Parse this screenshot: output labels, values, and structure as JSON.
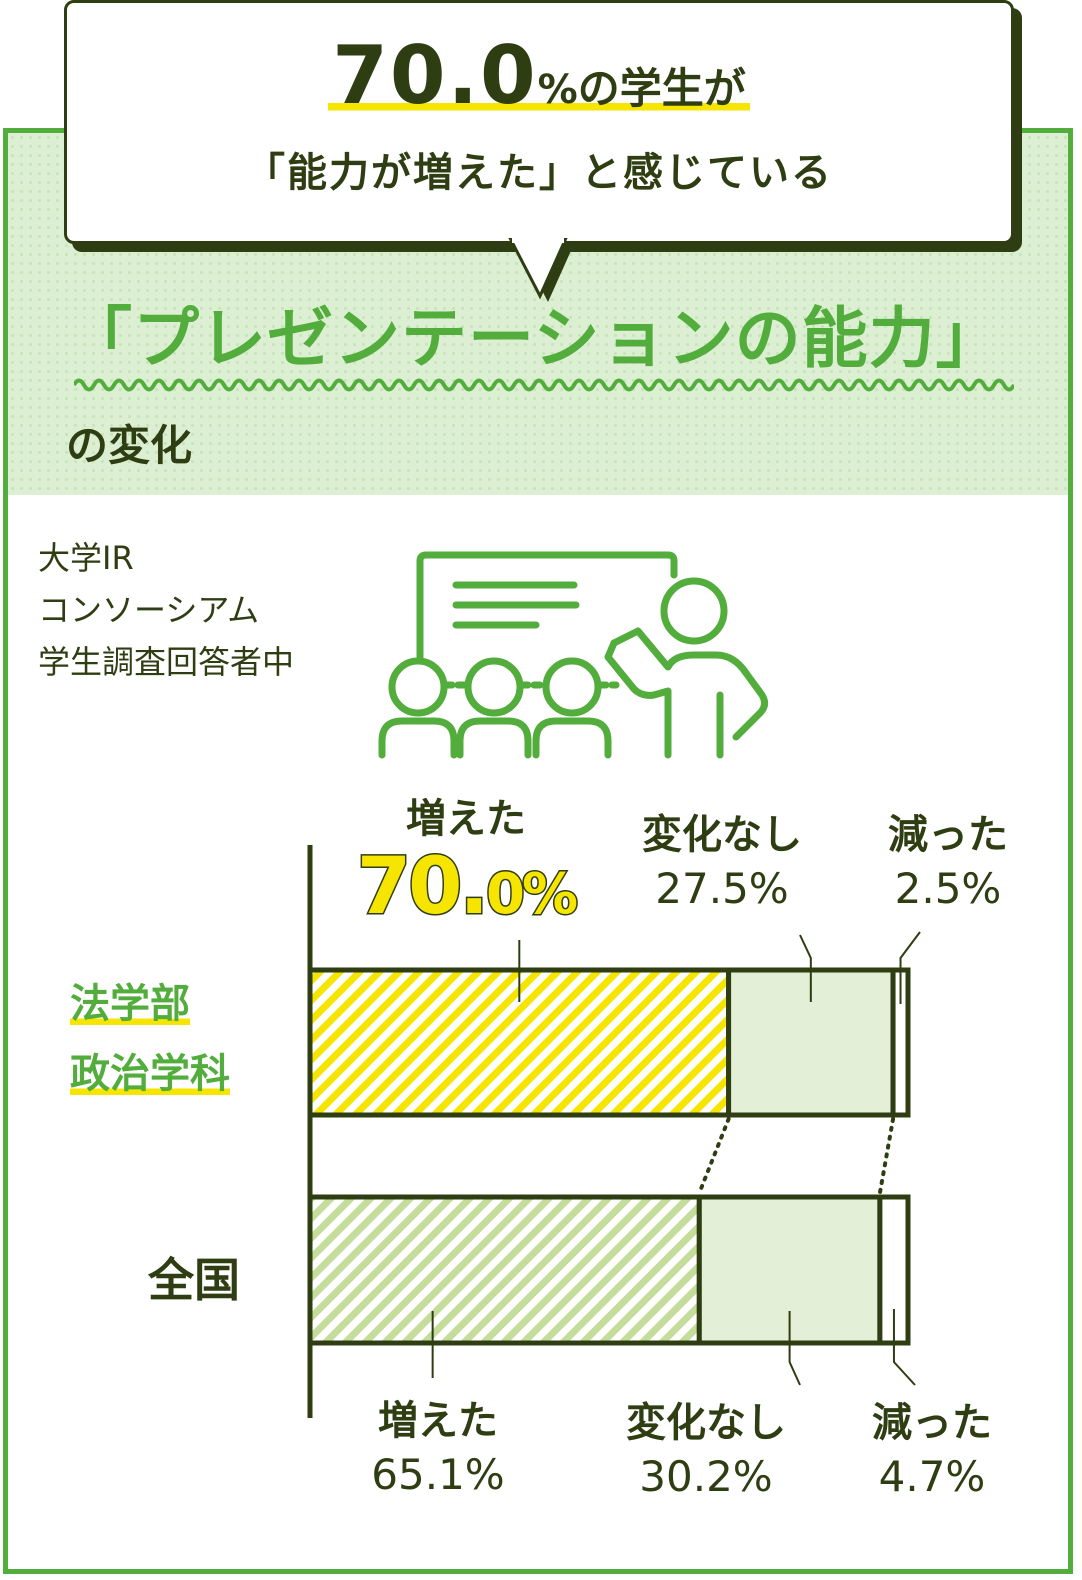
{
  "headline": {
    "value_main": "70.0",
    "value_unit": "%",
    "line1_rest": "の学生が",
    "line2": "「能力が増えた」と感じている"
  },
  "topic": {
    "title": "「プレゼンテーションの能力」",
    "subtitle": "の変化"
  },
  "source": {
    "lines": [
      "大学IR",
      "コンソーシアム",
      "学生調査回答者中"
    ]
  },
  "icons": [
    "presentation-icon"
  ],
  "colors": {
    "accent_green": "#52ad3d",
    "dark_olive": "#2f3d12",
    "highlight_yellow": "#f5e500",
    "pale_green": "#e3efd6",
    "hatch_pale": "#c5dd9b"
  },
  "chart_data": {
    "type": "bar",
    "orientation": "horizontal-stacked-100",
    "categories": [
      "法学部\n政治学科",
      "全国"
    ],
    "series": [
      {
        "name": "増えた",
        "values": [
          70.0,
          65.1
        ]
      },
      {
        "name": "変化なし",
        "values": [
          27.5,
          30.2
        ]
      },
      {
        "name": "減った",
        "values": [
          2.5,
          4.7
        ]
      }
    ],
    "value_labels": {
      "top": {
        "increased": {
          "name": "増えた",
          "big_int": "70.",
          "big_dec": "0%"
        },
        "unchanged": {
          "name": "変化なし",
          "value": "27.5%"
        },
        "decreased": {
          "name": "減った",
          "value": "2.5%"
        }
      },
      "bottom": {
        "increased": {
          "name": "増えた",
          "value": "65.1%"
        },
        "unchanged": {
          "name": "変化なし",
          "value": "30.2%"
        },
        "decreased": {
          "name": "減った",
          "value": "4.7%"
        }
      }
    },
    "category_labels": {
      "top_line1": "法学部",
      "top_line2": "政治学科",
      "bottom": "全国"
    },
    "xlim": [
      0,
      100
    ]
  }
}
